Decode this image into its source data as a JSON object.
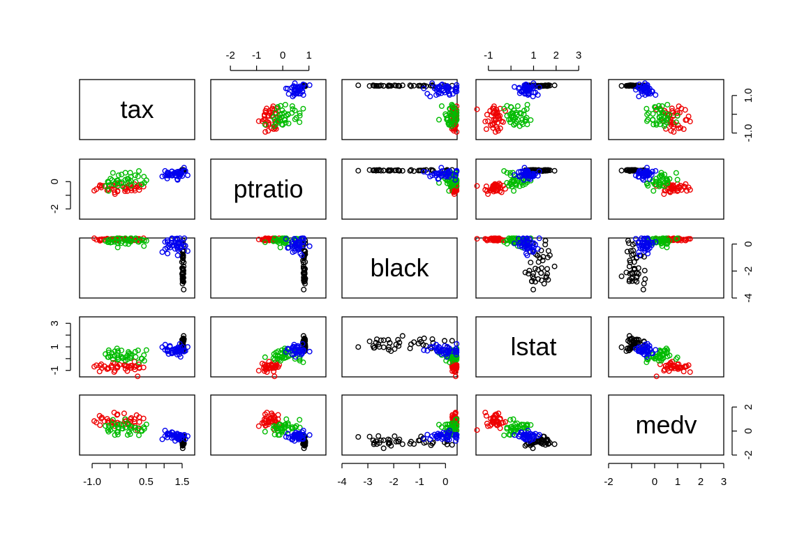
{
  "chart_data": {
    "type": "scatter",
    "variables": [
      "tax",
      "ptratio",
      "black",
      "lstat",
      "medv"
    ],
    "colors": {
      "class1": "#000000",
      "class2": "#DF536B",
      "class3": "#61D04F",
      "class4": "#2297E6"
    },
    "palette": [
      "#000000",
      "#ff0000",
      "#00c000",
      "#0000ff"
    ],
    "ranges": {
      "tax": [
        -1.35,
        1.85
      ],
      "ptratio": [
        -2.75,
        1.65
      ],
      "black": [
        -4.0,
        0.45
      ],
      "lstat": [
        -1.55,
        3.55
      ],
      "medv": [
        -2.0,
        3.0
      ]
    },
    "ticks": {
      "bottom": {
        "tax": [
          {
            "v": -1.0,
            "label": "-1.0"
          },
          {
            "v": -0.5,
            "label": ""
          },
          {
            "v": 0.0,
            "label": ""
          },
          {
            "v": 0.5,
            "label": "0.5"
          },
          {
            "v": 1.0,
            "label": ""
          },
          {
            "v": 1.5,
            "label": "1.5"
          }
        ],
        "black": [
          {
            "v": -4,
            "label": "-4"
          },
          {
            "v": -3,
            "label": "-3"
          },
          {
            "v": -2,
            "label": "-2"
          },
          {
            "v": -1,
            "label": "-1"
          },
          {
            "v": 0,
            "label": "0"
          }
        ],
        "medv": [
          {
            "v": -2,
            "label": "-2"
          },
          {
            "v": -1,
            "label": ""
          },
          {
            "v": 0,
            "label": "0"
          },
          {
            "v": 1,
            "label": "1"
          },
          {
            "v": 2,
            "label": "2"
          },
          {
            "v": 3,
            "label": "3"
          }
        ]
      },
      "top": {
        "ptratio": [
          {
            "v": -2,
            "label": "-2"
          },
          {
            "v": -1,
            "label": "-1"
          },
          {
            "v": 0,
            "label": "0"
          },
          {
            "v": 1,
            "label": "1"
          }
        ],
        "lstat": [
          {
            "v": -1,
            "label": "-1"
          },
          {
            "v": 0,
            "label": ""
          },
          {
            "v": 1,
            "label": "1"
          },
          {
            "v": 2,
            "label": "2"
          },
          {
            "v": 3,
            "label": "3"
          }
        ]
      },
      "left": {
        "ptratio": [
          {
            "v": 0,
            "label": "0"
          },
          {
            "v": -1,
            "label": ""
          },
          {
            "v": -2,
            "label": "-2"
          }
        ],
        "lstat": [
          {
            "v": 3,
            "label": "3"
          },
          {
            "v": 2,
            "label": ""
          },
          {
            "v": 1,
            "label": "1"
          },
          {
            "v": 0,
            "label": ""
          },
          {
            "v": -1,
            "label": "-1"
          }
        ]
      },
      "right": {
        "tax": [
          {
            "v": 1.0,
            "label": "1.0"
          },
          {
            "v": 0.0,
            "label": ""
          },
          {
            "v": -1.0,
            "label": "-1.0"
          }
        ],
        "black": [
          {
            "v": 0,
            "label": "0"
          },
          {
            "v": -2,
            "label": "-2"
          },
          {
            "v": -4,
            "label": "-4"
          }
        ],
        "medv": [
          {
            "v": 2,
            "label": "2"
          },
          {
            "v": 0,
            "label": "0"
          },
          {
            "v": -2,
            "label": "-2"
          }
        ]
      }
    },
    "clusters": [
      {
        "class": 0,
        "tax": [
          1.5,
          1.54,
          0.03
        ],
        "ptratio": [
          0.8,
          0.85,
          0.05
        ],
        "black": [
          -3.3,
          0.05,
          0.6
        ],
        "lstat": [
          1.3,
          1.0,
          0.9
        ],
        "medv": [
          -1.2,
          -0.6,
          0.45
        ]
      },
      {
        "class": 1,
        "tax": [
          -0.8,
          0.3,
          0.4
        ],
        "ptratio": [
          -0.7,
          -0.4,
          0.55
        ],
        "black": [
          0.3,
          0.4,
          0.12
        ],
        "lstat": [
          -0.9,
          -0.5,
          0.5
        ],
        "medv": [
          0.8,
          0.9,
          0.9
        ]
      },
      {
        "class": 2,
        "tax": [
          -0.6,
          0.4,
          0.5
        ],
        "ptratio": [
          -0.3,
          0.5,
          0.65
        ],
        "black": [
          0.1,
          0.35,
          0.5
        ],
        "lstat": [
          -0.2,
          0.5,
          0.8
        ],
        "medv": [
          0.1,
          0.4,
          0.8
        ]
      },
      {
        "class": 3,
        "tax": [
          1.1,
          1.5,
          0.4
        ],
        "ptratio": [
          0.3,
          0.8,
          0.35
        ],
        "black": [
          -0.4,
          0.3,
          0.8
        ],
        "lstat": [
          0.6,
          0.7,
          0.7
        ],
        "medv": [
          -0.5,
          -0.3,
          0.5
        ]
      }
    ]
  }
}
